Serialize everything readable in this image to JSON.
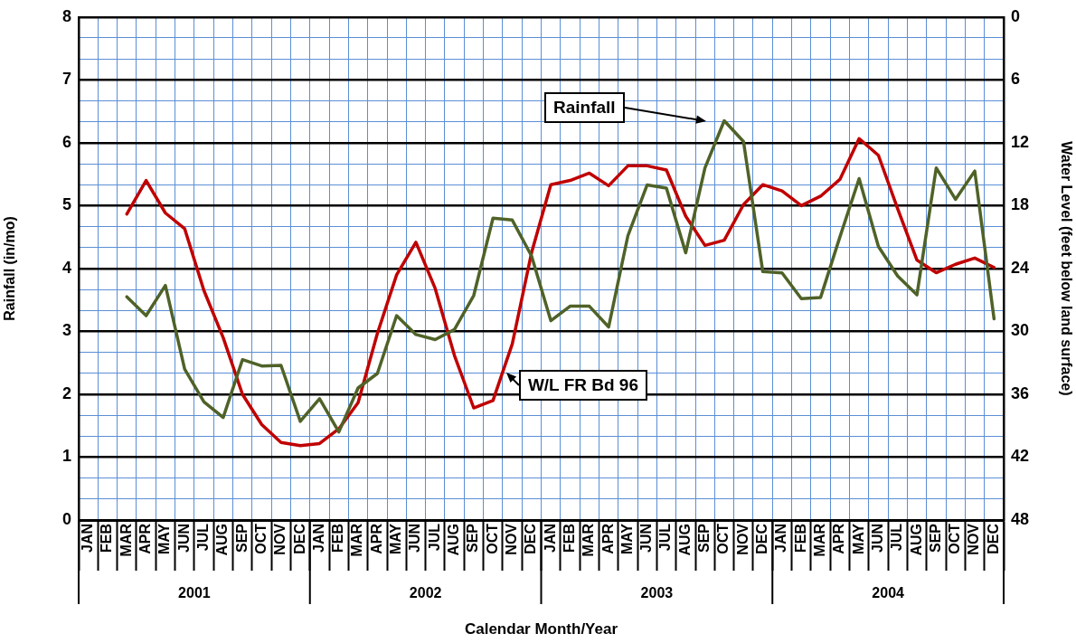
{
  "chart_data": {
    "type": "line",
    "xlabel": "Calendar Month/Year",
    "ylabel": "Rainfall (in/mo)",
    "y2label": "Water Level (feet below land surface)",
    "categories": [
      "JAN",
      "FEB",
      "MAR",
      "APR",
      "MAY",
      "JUN",
      "JUL",
      "AUG",
      "SEP",
      "OCT",
      "NOV",
      "DEC",
      "JAN",
      "FEB",
      "MAR",
      "APR",
      "MAY",
      "JUN",
      "JUL",
      "AUG",
      "SEP",
      "OCT",
      "NOV",
      "DEC",
      "JAN",
      "FEB",
      "MAR",
      "APR",
      "MAY",
      "JUN",
      "JUL",
      "AUG",
      "SEP",
      "OCT",
      "NOV",
      "DEC",
      "JAN",
      "FEB",
      "MAR",
      "APR",
      "MAY",
      "JUN",
      "JUL",
      "AUG",
      "SEP",
      "OCT",
      "NOV",
      "DEC"
    ],
    "series": [
      {
        "name": "Rainfall",
        "color": "#4f6228",
        "values": [
          null,
          null,
          3.55,
          3.25,
          3.73,
          2.4,
          1.88,
          1.63,
          2.55,
          2.45,
          2.46,
          1.57,
          1.93,
          1.4,
          2.1,
          2.33,
          3.25,
          2.95,
          2.87,
          3.03,
          3.57,
          4.8,
          4.77,
          4.2,
          3.17,
          3.4,
          3.4,
          3.07,
          4.52,
          5.33,
          5.28,
          4.25,
          5.6,
          6.35,
          6.02,
          3.95,
          3.93,
          3.52,
          3.54,
          4.5,
          5.43,
          4.35,
          3.88,
          3.58,
          5.6,
          5.1,
          5.55,
          3.2
        ]
      },
      {
        "name": "W/L FR Bd 96",
        "color": "#c00000",
        "axis": "y2",
        "values": [
          null,
          null,
          18.8,
          15.6,
          18.7,
          20.2,
          26.1,
          30.6,
          36,
          38.9,
          40.6,
          40.9,
          40.7,
          39.3,
          36.8,
          30.2,
          24.6,
          21.5,
          25.9,
          32.3,
          37.3,
          36.6,
          31.2,
          22.5,
          16,
          15.6,
          14.9,
          16.1,
          14.2,
          14.2,
          14.6,
          19,
          21.8,
          21.3,
          17.9,
          16,
          16.6,
          18,
          17.1,
          15.5,
          11.6,
          13.2,
          18.3,
          23.2,
          24.4,
          23.6,
          23,
          23.9
        ]
      }
    ],
    "ylim": [
      0,
      8
    ],
    "yticks": [
      0,
      1,
      2,
      3,
      4,
      5,
      6,
      7,
      8
    ],
    "y2lim": [
      48,
      0
    ],
    "y2ticks": [
      0,
      {
        "value": 2,
        "label": null
      },
      {
        "value": 4,
        "label": null
      },
      6,
      {
        "value": 8,
        "label": null
      },
      {
        "value": 10,
        "label": null
      },
      12,
      {
        "value": 14,
        "label": null
      },
      {
        "value": 16,
        "label": null
      },
      18,
      {
        "value": 20,
        "label": null
      },
      {
        "value": 22,
        "label": null
      },
      24,
      {
        "value": 26,
        "label": null
      },
      {
        "value": 28,
        "label": null
      },
      30,
      {
        "value": 32,
        "label": null
      },
      {
        "value": 34,
        "label": null
      },
      36,
      {
        "value": 38,
        "label": null
      },
      {
        "value": 40,
        "label": null
      },
      42,
      {
        "value": 44,
        "label": null
      },
      {
        "value": 46,
        "label": null
      },
      48
    ],
    "grid": true,
    "marker": "none",
    "line_style": "solid",
    "annotations": [
      "2001",
      "2002",
      "2003",
      "2004"
    ]
  }
}
